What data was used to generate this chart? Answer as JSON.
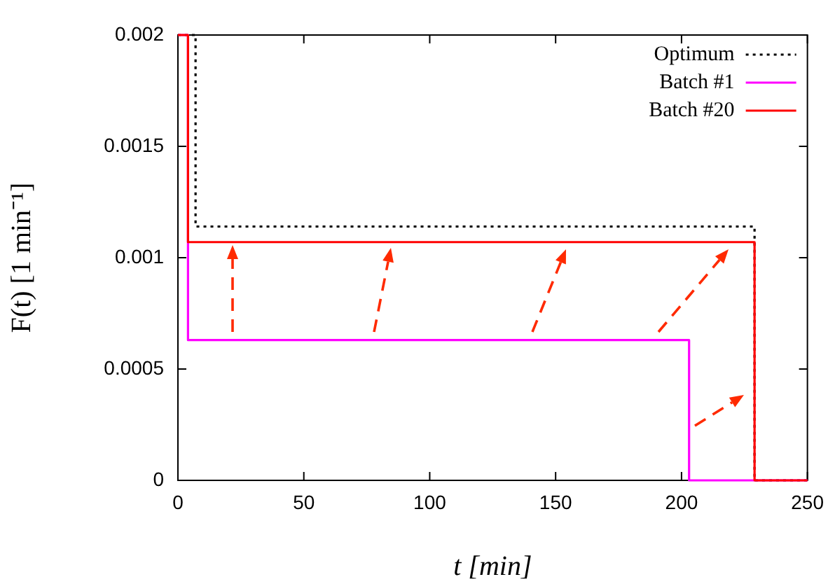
{
  "chart_data": {
    "type": "step",
    "xlabel": "t [min]",
    "ylabel": "F(t) [1 min⁻¹]",
    "xlim": [
      0,
      250
    ],
    "xticks": [
      0,
      50,
      100,
      150,
      200,
      250
    ],
    "ylim": [
      0,
      0.002
    ],
    "yticks": [
      0,
      0.0005,
      0.001,
      0.0015,
      0.002
    ],
    "grid": false,
    "legend": "top right",
    "series": [
      {
        "name": "Optimum",
        "color": "#000000",
        "line_style": "dotted",
        "x": [
          0,
          7,
          229,
          250
        ],
        "values": [
          0.002,
          0.00114,
          0,
          0
        ]
      },
      {
        "name": "Batch #1",
        "color": "#ff00ff",
        "line_style": "solid",
        "x": [
          0,
          4,
          203,
          250
        ],
        "values": [
          0.002,
          0.00063,
          0,
          0
        ]
      },
      {
        "name": "Batch #20",
        "color": "#ff0000",
        "line_style": "solid",
        "x": [
          0,
          4,
          229,
          250
        ],
        "values": [
          0.002,
          0.00107,
          0,
          0
        ]
      }
    ]
  }
}
